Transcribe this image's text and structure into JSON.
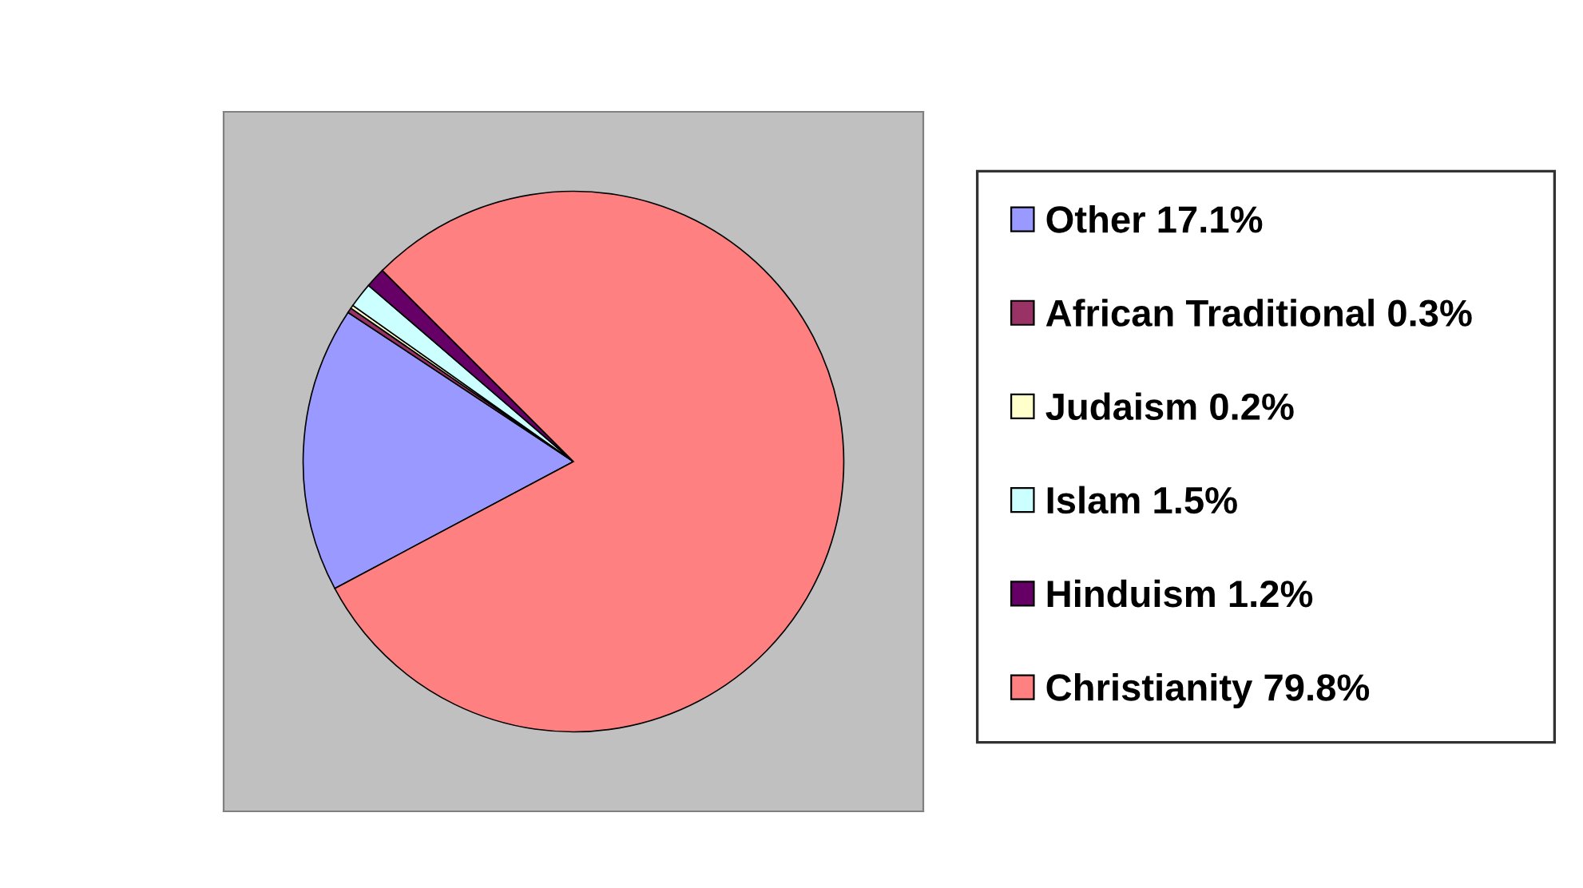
{
  "chart_data": {
    "type": "pie",
    "categories": [
      "Other 17.1%",
      "African Traditional 0.3%",
      "Judaism 0.2%",
      "Islam 1.5%",
      "Hinduism 1.2%",
      "Christianity 79.8%"
    ],
    "values": [
      17.1,
      0.3,
      0.2,
      1.5,
      1.2,
      79.8
    ],
    "colors": [
      "#9999ff",
      "#993366",
      "#ffffcc",
      "#ccffff",
      "#660066",
      "#ff8080"
    ],
    "legend": "right"
  }
}
